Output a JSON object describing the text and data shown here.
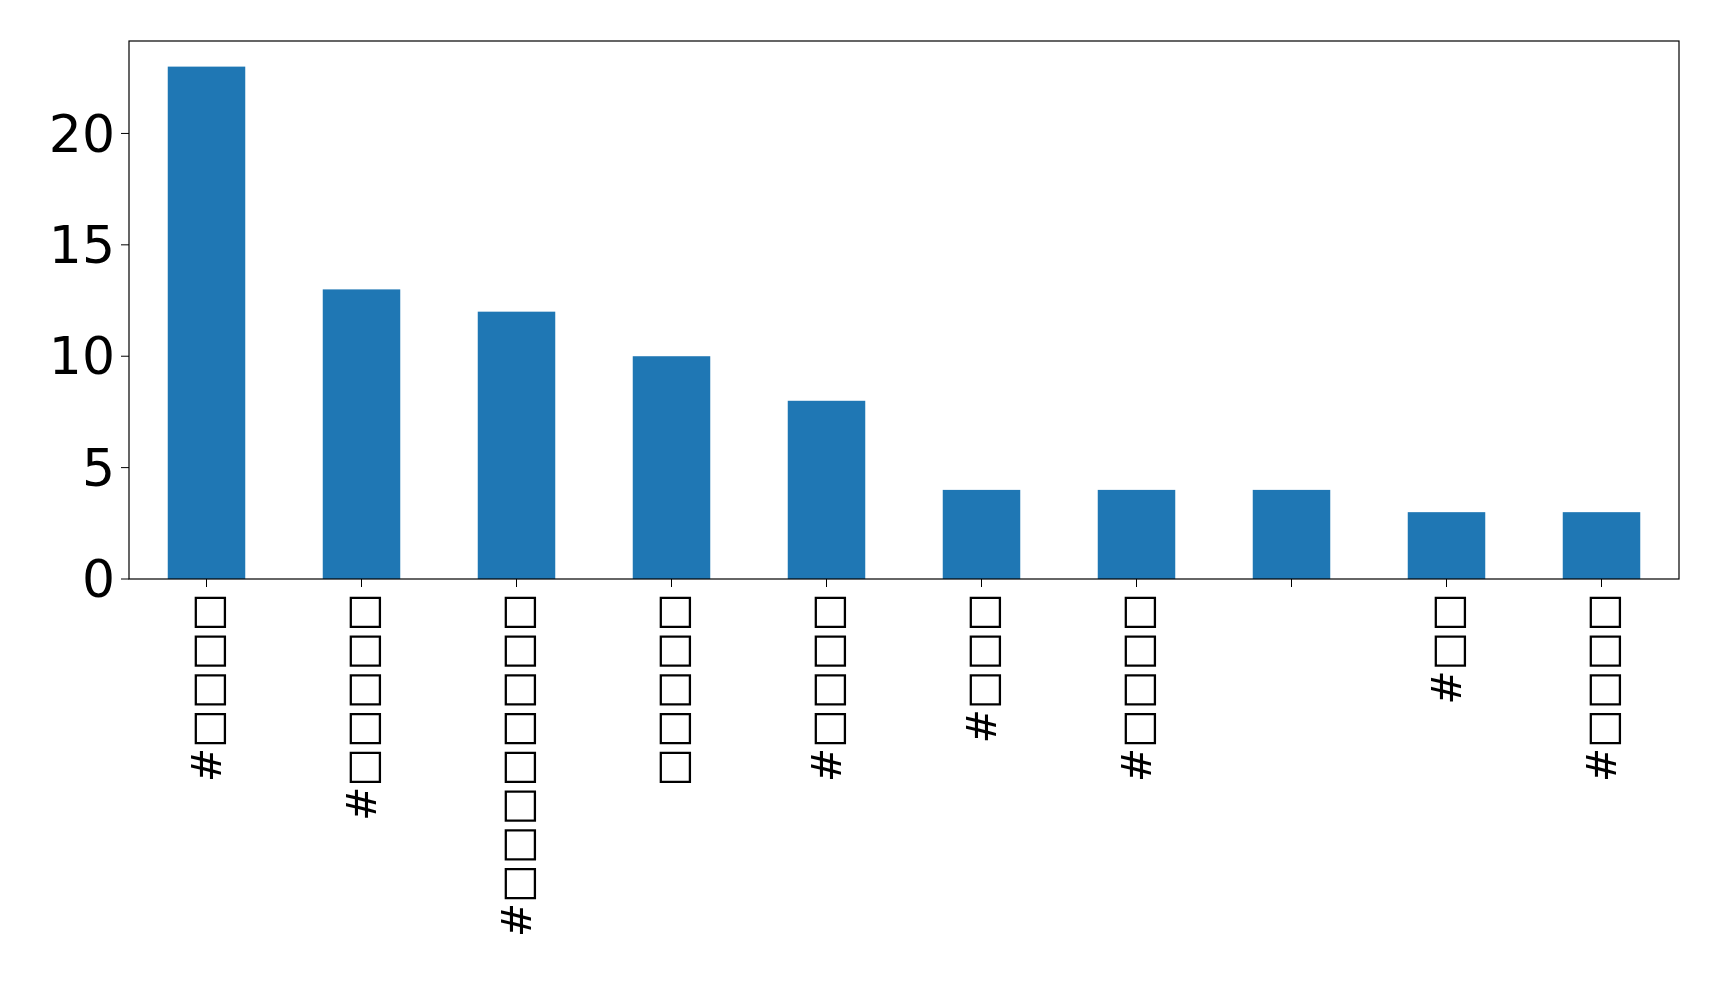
{
  "chart_data": {
    "type": "bar",
    "categories": [
      "#□□□□",
      "#□□□□□",
      "#□□□□□□□□",
      "□□□□□",
      "#□□□□",
      "#□□□",
      "#□□□□",
      null,
      "#□□",
      "#□□□□"
    ],
    "values": [
      23,
      13,
      12,
      10,
      8,
      4,
      4,
      4,
      3,
      3
    ],
    "color": "#1f77b4",
    "ylim": [
      0,
      24.15
    ],
    "yticks": [
      0,
      5,
      10,
      15,
      20
    ],
    "grid": false
  }
}
